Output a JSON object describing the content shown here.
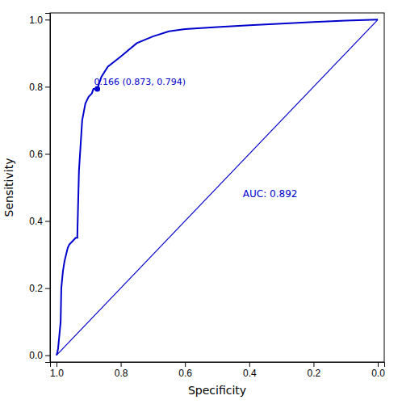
{
  "chart_data": {
    "type": "line",
    "xlabel": "Specificity",
    "ylabel": "Sensitivity",
    "xlim": [
      1.02,
      -0.02
    ],
    "ylim": [
      -0.02,
      1.02
    ],
    "xticks": [
      {
        "value": 1.0,
        "label": "1.0"
      },
      0.8,
      0.6,
      0.4,
      0.2,
      {
        "value": 0.0,
        "label": "0.0"
      }
    ],
    "yticks": [
      {
        "value": 0.0,
        "label": "0.0"
      },
      0.2,
      0.4,
      0.6,
      0.8,
      {
        "value": 1.0,
        "label": "1.0"
      }
    ],
    "grid": false,
    "series": [
      {
        "type": "line",
        "color": "#0000CC",
        "x": [
          1.0,
          0.997,
          0.995,
          0.992,
          0.99,
          0.987,
          0.985,
          0.98,
          0.975,
          0.97,
          0.965,
          0.96,
          0.95,
          0.94,
          0.935,
          0.935,
          0.93,
          0.92,
          0.91,
          0.9,
          0.89,
          0.885,
          0.873,
          0.86,
          0.84,
          0.82,
          0.8,
          0.75,
          0.7,
          0.65,
          0.6,
          0.5,
          0.4,
          0.3,
          0.2,
          0.1,
          0.0
        ],
        "values": [
          0.0,
          0.01,
          0.02,
          0.05,
          0.07,
          0.1,
          0.2,
          0.25,
          0.28,
          0.3,
          0.32,
          0.33,
          0.34,
          0.35,
          0.35,
          0.36,
          0.55,
          0.7,
          0.75,
          0.77,
          0.78,
          0.794,
          0.794,
          0.83,
          0.86,
          0.875,
          0.89,
          0.93,
          0.95,
          0.965,
          0.972,
          0.978,
          0.983,
          0.988,
          0.993,
          0.997,
          1.0
        ]
      },
      {
        "type": "line",
        "color": "#0000CC",
        "x": [
          1.0,
          0.0
        ],
        "values": [
          0.0,
          1.0
        ]
      },
      {
        "type": "scatter",
        "marker": "circle",
        "color": "#0000CC",
        "x": [
          0.873
        ],
        "values": [
          0.794
        ]
      }
    ],
    "annotations": [
      {
        "text": "0.166 (0.873, 0.794)",
        "x": 0.873,
        "y": 0.794,
        "color": "#0000CC"
      },
      {
        "text": "AUC: 0.892",
        "x": 0.42,
        "y": 0.48,
        "color": "#0000CC"
      }
    ]
  }
}
